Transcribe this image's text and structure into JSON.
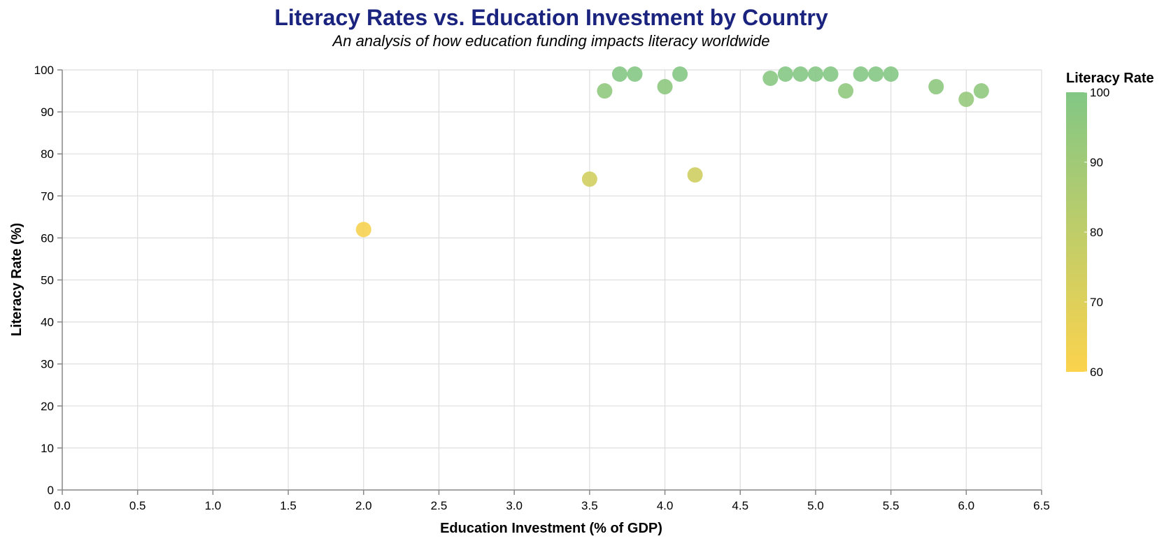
{
  "chart_data": {
    "type": "scatter",
    "title": "Literacy Rates vs. Education Investment by Country",
    "subtitle": "An analysis of how education funding impacts literacy worldwide",
    "xlabel": "Education Investment (% of GDP)",
    "ylabel": "Literacy Rate (%)",
    "xlim": [
      0,
      6.5
    ],
    "ylim": [
      0,
      100
    ],
    "x_ticks": [
      0,
      0.5,
      1,
      1.5,
      2,
      2.5,
      3,
      3.5,
      4,
      4.5,
      5,
      5.5,
      6,
      6.5
    ],
    "y_ticks": [
      0,
      10,
      20,
      30,
      40,
      50,
      60,
      70,
      80,
      90,
      100
    ],
    "grid": true,
    "legend": {
      "title": "Literacy Rate",
      "placement": "right",
      "type": "gradient",
      "domain": [
        60,
        100
      ],
      "ticks": [
        100,
        90,
        80,
        70,
        60
      ],
      "color_low": "#fcd34d",
      "color_high": "#82c785"
    },
    "colors": {
      "title": "#1a237e",
      "point_opacity": 0.9
    },
    "points": [
      {
        "x": 2.0,
        "y": 62
      },
      {
        "x": 3.5,
        "y": 74
      },
      {
        "x": 3.6,
        "y": 95
      },
      {
        "x": 3.7,
        "y": 99
      },
      {
        "x": 3.8,
        "y": 99
      },
      {
        "x": 4.0,
        "y": 96
      },
      {
        "x": 4.1,
        "y": 99
      },
      {
        "x": 4.2,
        "y": 75
      },
      {
        "x": 4.7,
        "y": 98
      },
      {
        "x": 4.8,
        "y": 99
      },
      {
        "x": 4.9,
        "y": 99
      },
      {
        "x": 5.0,
        "y": 99
      },
      {
        "x": 5.1,
        "y": 99
      },
      {
        "x": 5.2,
        "y": 95
      },
      {
        "x": 5.3,
        "y": 99
      },
      {
        "x": 5.4,
        "y": 99
      },
      {
        "x": 5.5,
        "y": 99
      },
      {
        "x": 5.8,
        "y": 96
      },
      {
        "x": 6.0,
        "y": 93
      },
      {
        "x": 6.1,
        "y": 95
      }
    ]
  }
}
